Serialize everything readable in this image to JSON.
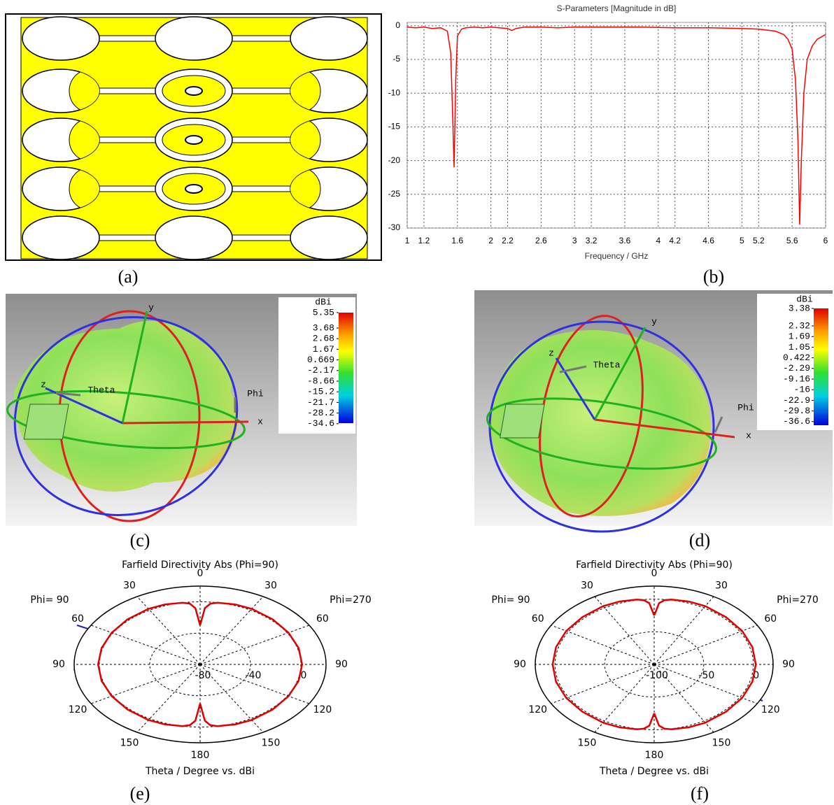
{
  "panel_labels": [
    "(a)",
    "(b)",
    "(c)",
    "(d)",
    "(e)",
    "(f)"
  ],
  "chart_data": [
    {
      "type": "line",
      "title": "S-Parameters [Magnitude in dB]",
      "x_label": "Frequency / GHz",
      "x": [
        1,
        1.1,
        1.2,
        1.3,
        1.4,
        1.48,
        1.52,
        1.54,
        1.56,
        1.58,
        1.6,
        1.65,
        1.7,
        1.8,
        1.9,
        2,
        2.1,
        2.2,
        2.25,
        2.3,
        2.4,
        2.6,
        2.8,
        3,
        3.4,
        3.8,
        4.2,
        4.6,
        5,
        5.2,
        5.4,
        5.5,
        5.55,
        5.6,
        5.64,
        5.67,
        5.69,
        5.71,
        5.74,
        5.78,
        5.84,
        5.9,
        6
      ],
      "values": [
        -0.2,
        -0.3,
        -0.2,
        -0.4,
        -0.3,
        -0.8,
        -4,
        -12,
        -21,
        -8,
        -1.5,
        -0.5,
        -0.3,
        -0.2,
        -0.3,
        -0.2,
        -0.3,
        -0.4,
        -0.7,
        -0.4,
        -0.2,
        -0.2,
        -0.3,
        -0.2,
        -0.2,
        -0.2,
        -0.3,
        -0.3,
        -0.4,
        -0.5,
        -0.8,
        -1.3,
        -2,
        -3.5,
        -8,
        -17,
        -29.5,
        -20,
        -10,
        -5,
        -3,
        -2,
        -1.3
      ],
      "color": "#ff0000",
      "xlim": [
        1,
        6
      ],
      "ylim": [
        -30,
        0.5
      ],
      "xticks": [
        1,
        1.2,
        1.6,
        2,
        2.2,
        2.6,
        3,
        3.2,
        3.6,
        4,
        4.2,
        4.6,
        5,
        5.2,
        5.6,
        6
      ],
      "yticks": [
        0,
        -5,
        -10,
        -15,
        -20,
        -25,
        -30
      ],
      "grid": true
    },
    {
      "type": "polar",
      "title": "Farfield Directivity Abs (Phi=90)",
      "x_label": "Theta / Degree vs. dBi",
      "theta": [
        0,
        3,
        6,
        10,
        20,
        30,
        45,
        60,
        75,
        90,
        105,
        120,
        135,
        150,
        160,
        170,
        174,
        177,
        180
      ],
      "series": [
        {
          "name": "Phi= 90",
          "color": "#e00000",
          "values": [
            -30,
            -8,
            -2,
            0,
            1.5,
            2,
            1.5,
            1,
            1,
            1,
            1,
            1,
            1.5,
            2,
            1.5,
            0,
            -2,
            -8,
            -30
          ]
        },
        {
          "name": "Phi=270",
          "color": "#e00000",
          "values": [
            -30,
            -8,
            -2,
            0,
            1.5,
            2,
            1.5,
            1,
            1,
            1,
            1,
            1,
            1.5,
            2,
            1.5,
            0,
            -2,
            -8,
            -30
          ]
        }
      ],
      "rlim": [
        -80,
        20
      ],
      "rticks": [
        -80,
        -40,
        0
      ],
      "angle_ticks": [
        0,
        30,
        60,
        90,
        120,
        150,
        180
      ]
    },
    {
      "type": "polar",
      "title": "Farfield Directivity Abs (Phi=90)",
      "x_label": "Theta / Degree vs. dBi",
      "theta": [
        0,
        3,
        6,
        10,
        20,
        30,
        45,
        60,
        75,
        90,
        105,
        120,
        135,
        150,
        160,
        170,
        174,
        177,
        180
      ],
      "series": [
        {
          "name": "Phi= 90",
          "color": "#e00000",
          "values": [
            -25,
            -6,
            -1,
            1,
            2.5,
            3,
            2.5,
            2.5,
            2.5,
            2.5,
            2.5,
            2.5,
            2.5,
            3,
            2.5,
            1,
            -1,
            -6,
            -25
          ]
        },
        {
          "name": "Phi=270",
          "color": "#e00000",
          "values": [
            -25,
            -6,
            -1,
            1,
            2.5,
            3,
            2.5,
            2.5,
            2.5,
            2.5,
            2.5,
            2.5,
            2.5,
            3,
            2.5,
            1,
            -1,
            -6,
            -25
          ]
        }
      ],
      "rlim": [
        -100,
        20
      ],
      "rticks": [
        -100,
        -50,
        0
      ],
      "angle_ticks": [
        0,
        30,
        60,
        90,
        120,
        150,
        180
      ]
    }
  ],
  "patterns_3d": [
    {
      "unit": "dBi",
      "colorbar_ticks": [
        5.35,
        3.68,
        2.68,
        1.67,
        0.669,
        -2.17,
        -8.66,
        -15.2,
        -21.7,
        -28.2,
        -34.6
      ],
      "x": "x",
      "y": "y",
      "z": "z",
      "theta": "Theta",
      "phi": "Phi"
    },
    {
      "unit": "dBi",
      "colorbar_ticks": [
        3.38,
        2.32,
        1.69,
        1.05,
        0.422,
        -2.29,
        -9.16,
        -16,
        -22.9,
        -29.8,
        -36.6
      ],
      "x": "x",
      "y": "y",
      "z": "z",
      "theta": "Theta",
      "phi": "Phi"
    }
  ]
}
